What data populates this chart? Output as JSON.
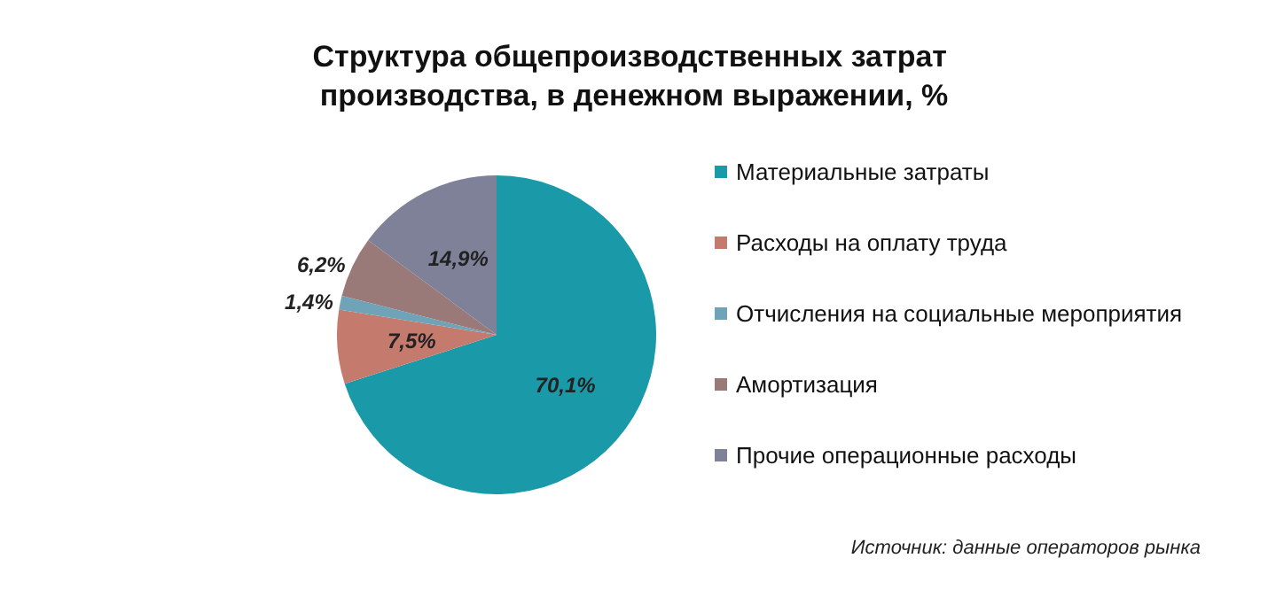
{
  "chart_data": {
    "type": "pie",
    "title": "Структура общепроизводственных затрат производства, в денежном выражении, %",
    "categories": [
      "Материальные затраты",
      "Расходы на оплату труда",
      "Отчисления на социальные мероприятия",
      "Амортизация",
      "Прочие операционные расходы"
    ],
    "values": [
      70.1,
      7.5,
      1.4,
      6.2,
      14.9
    ],
    "value_labels": [
      "70,1%",
      "7,5%",
      "1,4%",
      "6,2%",
      "14,9%"
    ],
    "colors": [
      "#1a9aa8",
      "#c47a6c",
      "#6fa3b8",
      "#9a7a78",
      "#7e8198"
    ],
    "legend": "right",
    "annotations": [
      "Источник: данные операторов рынка"
    ]
  }
}
